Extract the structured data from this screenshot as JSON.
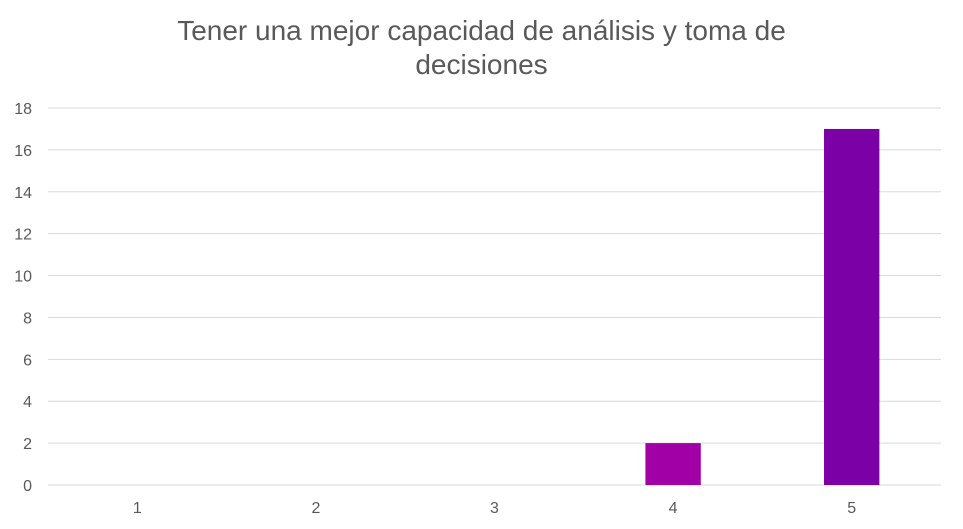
{
  "chart_data": {
    "type": "bar",
    "title_lines": [
      "Tener una mejor capacidad de análisis y toma de",
      "decisiones"
    ],
    "categories": [
      "1",
      "2",
      "3",
      "4",
      "5"
    ],
    "values": [
      0,
      0,
      0,
      2,
      17
    ],
    "bar_colors": [
      "#7b00a6",
      "#7b00a6",
      "#7b00a6",
      "#a000a6",
      "#7b00a6"
    ],
    "ylim": [
      0,
      18
    ],
    "yticks": [
      "0",
      "2",
      "4",
      "6",
      "8",
      "10",
      "12",
      "14",
      "16",
      "18"
    ],
    "xlabel": "",
    "ylabel": "",
    "grid": true,
    "legend": "none"
  }
}
